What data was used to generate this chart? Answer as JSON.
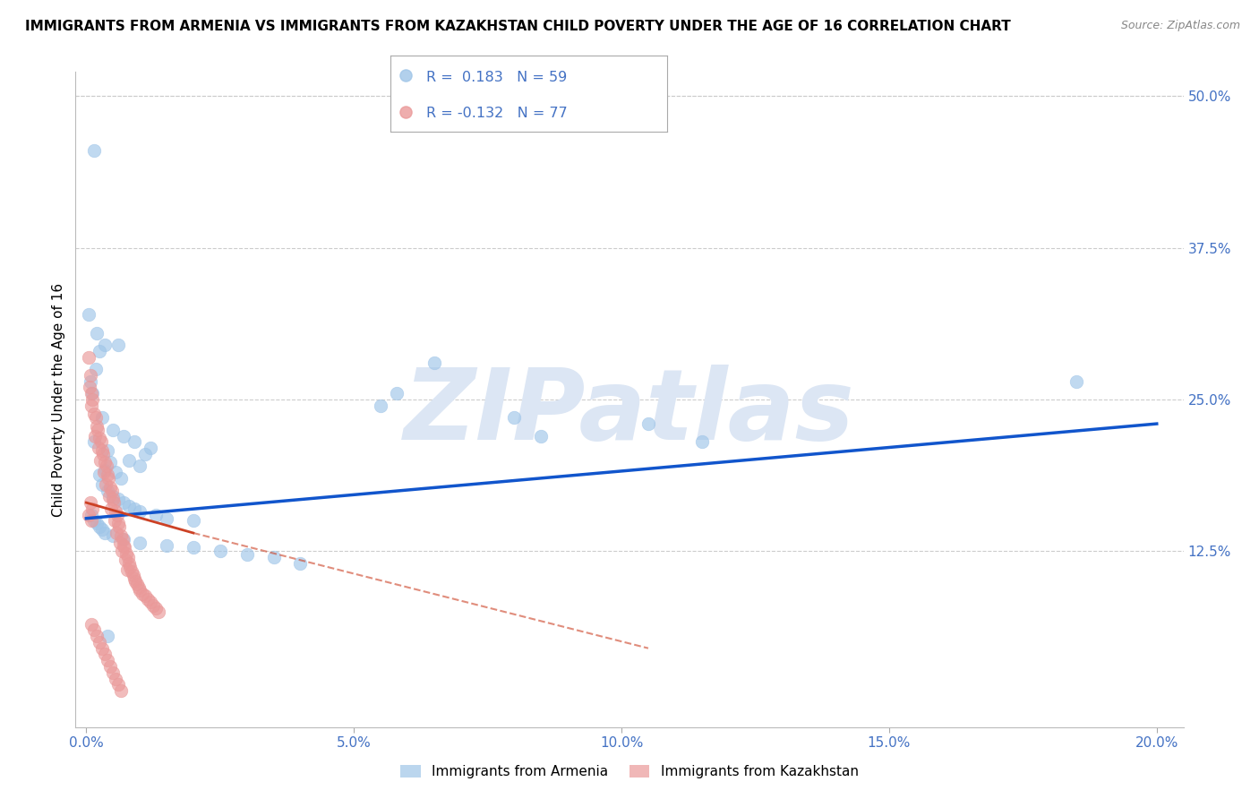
{
  "title": "IMMIGRANTS FROM ARMENIA VS IMMIGRANTS FROM KAZAKHSTAN CHILD POVERTY UNDER THE AGE OF 16 CORRELATION CHART",
  "source": "Source: ZipAtlas.com",
  "ylabel_left": "Child Poverty Under the Age of 16",
  "x_tick_labels": [
    "0.0%",
    "5.0%",
    "10.0%",
    "15.0%",
    "20.0%"
  ],
  "x_tick_values": [
    0.0,
    5.0,
    10.0,
    15.0,
    20.0
  ],
  "y_tick_labels_right": [
    "50.0%",
    "37.5%",
    "25.0%",
    "12.5%"
  ],
  "y_tick_values_right": [
    50.0,
    37.5,
    25.0,
    12.5
  ],
  "x_bottom_label": "20.0%",
  "y_min": -2.0,
  "y_max": 52.0,
  "x_min": -0.2,
  "x_max": 20.5,
  "armenia_R": "0.183",
  "armenia_N": "59",
  "kazakhstan_R": "-0.132",
  "kazakhstan_N": "77",
  "legend_label_armenia": "Immigrants from Armenia",
  "legend_label_kazakhstan": "Immigrants from Kazakhstan",
  "color_armenia": "#9fc5e8",
  "color_kazakhstan": "#ea9999",
  "color_trend_armenia": "#1155cc",
  "color_trend_kazakhstan": "#cc4125",
  "color_axes_blue": "#4472c4",
  "background_color": "#ffffff",
  "grid_color": "#cccccc",
  "watermark_text": "ZIPatlas",
  "watermark_color": "#dce6f4",
  "title_fontsize": 11,
  "source_fontsize": 9,
  "armenia_trend_x0": 0.0,
  "armenia_trend_y0": 15.2,
  "armenia_trend_x1": 20.0,
  "armenia_trend_y1": 23.0,
  "kazakhstan_trend_solid_x0": 0.0,
  "kazakhstan_trend_solid_y0": 16.5,
  "kazakhstan_trend_solid_x1": 2.0,
  "kazakhstan_trend_solid_y1": 14.0,
  "kazakhstan_trend_dashed_x0": 2.0,
  "kazakhstan_trend_dashed_y0": 14.0,
  "kazakhstan_trend_dashed_x1": 10.5,
  "kazakhstan_trend_dashed_y1": 4.5,
  "armenia_scatter": [
    [
      0.15,
      45.5
    ],
    [
      0.05,
      32.0
    ],
    [
      0.2,
      30.5
    ],
    [
      0.35,
      29.5
    ],
    [
      0.08,
      26.5
    ],
    [
      0.12,
      25.5
    ],
    [
      0.25,
      29.0
    ],
    [
      0.18,
      27.5
    ],
    [
      0.3,
      23.5
    ],
    [
      0.5,
      22.5
    ],
    [
      0.15,
      21.5
    ],
    [
      0.4,
      20.8
    ],
    [
      0.6,
      29.5
    ],
    [
      0.7,
      22.0
    ],
    [
      0.9,
      21.5
    ],
    [
      0.8,
      20.0
    ],
    [
      1.0,
      19.5
    ],
    [
      0.55,
      19.0
    ],
    [
      0.65,
      18.5
    ],
    [
      1.2,
      21.0
    ],
    [
      1.1,
      20.5
    ],
    [
      0.45,
      19.8
    ],
    [
      0.35,
      19.2
    ],
    [
      0.25,
      18.8
    ],
    [
      0.3,
      18.0
    ],
    [
      0.4,
      17.5
    ],
    [
      0.5,
      17.0
    ],
    [
      0.6,
      16.8
    ],
    [
      0.7,
      16.5
    ],
    [
      0.8,
      16.2
    ],
    [
      0.9,
      16.0
    ],
    [
      1.0,
      15.8
    ],
    [
      1.3,
      15.5
    ],
    [
      1.5,
      15.2
    ],
    [
      2.0,
      15.0
    ],
    [
      0.1,
      15.5
    ],
    [
      0.15,
      15.0
    ],
    [
      0.2,
      14.8
    ],
    [
      0.25,
      14.5
    ],
    [
      0.3,
      14.3
    ],
    [
      0.35,
      14.0
    ],
    [
      0.5,
      13.8
    ],
    [
      0.7,
      13.5
    ],
    [
      1.0,
      13.2
    ],
    [
      1.5,
      13.0
    ],
    [
      2.0,
      12.8
    ],
    [
      2.5,
      12.5
    ],
    [
      3.0,
      12.2
    ],
    [
      3.5,
      12.0
    ],
    [
      4.0,
      11.5
    ],
    [
      5.5,
      24.5
    ],
    [
      5.8,
      25.5
    ],
    [
      6.5,
      28.0
    ],
    [
      8.0,
      23.5
    ],
    [
      8.5,
      22.0
    ],
    [
      10.5,
      23.0
    ],
    [
      11.5,
      21.5
    ],
    [
      18.5,
      26.5
    ],
    [
      0.4,
      5.5
    ]
  ],
  "kazakhstan_scatter": [
    [
      0.05,
      28.5
    ],
    [
      0.08,
      27.0
    ],
    [
      0.06,
      26.0
    ],
    [
      0.1,
      25.5
    ],
    [
      0.12,
      25.0
    ],
    [
      0.09,
      24.5
    ],
    [
      0.15,
      23.8
    ],
    [
      0.18,
      23.5
    ],
    [
      0.2,
      22.8
    ],
    [
      0.22,
      22.5
    ],
    [
      0.17,
      22.0
    ],
    [
      0.25,
      21.8
    ],
    [
      0.28,
      21.5
    ],
    [
      0.23,
      21.0
    ],
    [
      0.3,
      20.8
    ],
    [
      0.32,
      20.5
    ],
    [
      0.27,
      20.0
    ],
    [
      0.35,
      19.8
    ],
    [
      0.38,
      19.5
    ],
    [
      0.33,
      19.0
    ],
    [
      0.4,
      18.8
    ],
    [
      0.42,
      18.5
    ],
    [
      0.37,
      18.0
    ],
    [
      0.45,
      17.8
    ],
    [
      0.48,
      17.5
    ],
    [
      0.43,
      17.0
    ],
    [
      0.5,
      16.8
    ],
    [
      0.52,
      16.5
    ],
    [
      0.47,
      16.0
    ],
    [
      0.55,
      15.8
    ],
    [
      0.58,
      15.5
    ],
    [
      0.53,
      15.0
    ],
    [
      0.6,
      14.8
    ],
    [
      0.62,
      14.5
    ],
    [
      0.57,
      14.0
    ],
    [
      0.65,
      13.8
    ],
    [
      0.68,
      13.5
    ],
    [
      0.63,
      13.2
    ],
    [
      0.7,
      13.0
    ],
    [
      0.72,
      12.8
    ],
    [
      0.67,
      12.5
    ],
    [
      0.75,
      12.3
    ],
    [
      0.78,
      12.0
    ],
    [
      0.73,
      11.8
    ],
    [
      0.8,
      11.5
    ],
    [
      0.82,
      11.2
    ],
    [
      0.77,
      11.0
    ],
    [
      0.85,
      10.8
    ],
    [
      0.88,
      10.5
    ],
    [
      0.9,
      10.2
    ],
    [
      0.92,
      10.0
    ],
    [
      0.95,
      9.8
    ],
    [
      0.98,
      9.5
    ],
    [
      1.0,
      9.3
    ],
    [
      1.05,
      9.0
    ],
    [
      1.1,
      8.8
    ],
    [
      1.15,
      8.5
    ],
    [
      1.2,
      8.3
    ],
    [
      1.25,
      8.0
    ],
    [
      1.3,
      7.8
    ],
    [
      1.35,
      7.5
    ],
    [
      0.1,
      6.5
    ],
    [
      0.15,
      6.0
    ],
    [
      0.2,
      5.5
    ],
    [
      0.25,
      5.0
    ],
    [
      0.3,
      4.5
    ],
    [
      0.35,
      4.0
    ],
    [
      0.4,
      3.5
    ],
    [
      0.45,
      3.0
    ],
    [
      0.5,
      2.5
    ],
    [
      0.55,
      2.0
    ],
    [
      0.6,
      1.5
    ],
    [
      0.65,
      1.0
    ],
    [
      0.05,
      15.5
    ],
    [
      0.1,
      15.0
    ],
    [
      0.08,
      16.5
    ],
    [
      0.12,
      16.0
    ]
  ]
}
